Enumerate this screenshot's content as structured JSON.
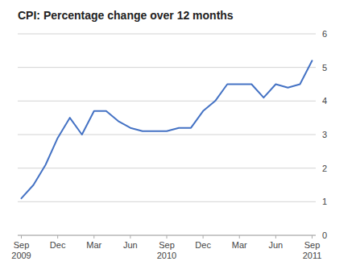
{
  "chart_data": {
    "type": "line",
    "title": "CPI: Percentage change over 12 months",
    "categories": [
      "Sep\n2009",
      null,
      null,
      "Dec",
      null,
      null,
      "Mar",
      null,
      null,
      "Jun",
      null,
      null,
      "Sep\n2010",
      null,
      null,
      "Dec",
      null,
      null,
      "Mar",
      null,
      null,
      "Jun",
      null,
      null,
      "Sep\n2011"
    ],
    "values": [
      1.1,
      1.5,
      2.1,
      2.9,
      3.5,
      3.0,
      3.7,
      3.7,
      3.4,
      3.2,
      3.1,
      3.1,
      3.1,
      3.2,
      3.2,
      3.7,
      4.0,
      4.5,
      4.5,
      4.5,
      4.1,
      4.5,
      4.4,
      4.5,
      5.2
    ],
    "color": "#4472C4",
    "ylim": [
      0,
      6
    ],
    "yticks": [
      0,
      1,
      2,
      3,
      4,
      5,
      6
    ],
    "grid": true
  }
}
